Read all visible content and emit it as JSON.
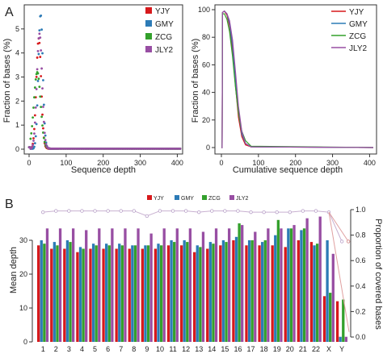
{
  "panels": {
    "a_label": "A",
    "b_label": "B"
  },
  "chart_data": [
    {
      "type": "scatter",
      "xlabel": "Sequence depth",
      "ylabel": "Fraction of bases (%)",
      "xlim": [
        0,
        410
      ],
      "ylim": [
        0,
        5.8
      ],
      "xticks": [
        0,
        100,
        200,
        300,
        400
      ],
      "yticks": [
        0,
        1,
        2,
        3,
        4,
        5
      ],
      "legend_position": "top-right",
      "series": [
        {
          "name": "YJY",
          "color": "#d7191c",
          "peak_x": 26,
          "peak_y": 4.6,
          "sigma": 6.5
        },
        {
          "name": "GMY",
          "color": "#2c7bb6",
          "peak_x": 31,
          "peak_y": 5.6,
          "sigma": 6.0
        },
        {
          "name": "ZCG",
          "color": "#33a02c",
          "peak_x": 22,
          "peak_y": 3.2,
          "sigma": 9.0
        },
        {
          "name": "JLY2",
          "color": "#984ea3",
          "peak_x": 28,
          "peak_y": 4.8,
          "sigma": 7.0
        }
      ]
    },
    {
      "type": "line",
      "xlabel": "Cumulative sequence depth",
      "ylabel": "Fraction of bases (%)",
      "xlim": [
        0,
        410
      ],
      "ylim": [
        0,
        100
      ],
      "xticks": [
        0,
        100,
        200,
        300,
        400
      ],
      "yticks": [
        0,
        20,
        40,
        60,
        80,
        100
      ],
      "legend_position": "top-right",
      "series": [
        {
          "name": "YJY",
          "color": "#d7191c",
          "points": [
            [
              0,
              0
            ],
            [
              2,
              0
            ],
            [
              3,
              98
            ],
            [
              8,
              99
            ],
            [
              15,
              96
            ],
            [
              22,
              88
            ],
            [
              30,
              70
            ],
            [
              38,
              45
            ],
            [
              46,
              22
            ],
            [
              55,
              8
            ],
            [
              65,
              2
            ],
            [
              80,
              0.5
            ],
            [
              410,
              0
            ]
          ]
        },
        {
          "name": "GMY",
          "color": "#2c7bb6",
          "points": [
            [
              0,
              0
            ],
            [
              2,
              0
            ],
            [
              3,
              98
            ],
            [
              8,
              99
            ],
            [
              15,
              97
            ],
            [
              22,
              90
            ],
            [
              30,
              74
            ],
            [
              38,
              50
            ],
            [
              46,
              26
            ],
            [
              55,
              10
            ],
            [
              65,
              3
            ],
            [
              80,
              0.5
            ],
            [
              410,
              0
            ]
          ]
        },
        {
          "name": "ZCG",
          "color": "#33a02c",
          "points": [
            [
              0,
              0
            ],
            [
              2,
              0
            ],
            [
              3,
              97
            ],
            [
              8,
              97
            ],
            [
              15,
              93
            ],
            [
              22,
              84
            ],
            [
              30,
              66
            ],
            [
              38,
              44
            ],
            [
              46,
              25
            ],
            [
              55,
              12
            ],
            [
              65,
              5
            ],
            [
              80,
              1
            ],
            [
              410,
              0
            ]
          ]
        },
        {
          "name": "JLY2",
          "color": "#984ea3",
          "points": [
            [
              0,
              0
            ],
            [
              2,
              0
            ],
            [
              3,
              98
            ],
            [
              8,
              99
            ],
            [
              15,
              97
            ],
            [
              22,
              92
            ],
            [
              30,
              78
            ],
            [
              38,
              55
            ],
            [
              46,
              30
            ],
            [
              55,
              12
            ],
            [
              65,
              3
            ],
            [
              80,
              0.5
            ],
            [
              410,
              0
            ]
          ]
        }
      ]
    },
    {
      "type": "bar",
      "ylabel": "Mean depth",
      "y2label": "Proportion of covered bases",
      "ylim": [
        0,
        40
      ],
      "y2lim": [
        0,
        1.0
      ],
      "yticks": [
        0,
        10,
        20,
        30
      ],
      "y2ticks": [
        0.0,
        0.2,
        0.4,
        0.6,
        0.8,
        1.0
      ],
      "legend_position": "top",
      "categories": [
        "1",
        "2",
        "3",
        "4",
        "5",
        "6",
        "7",
        "8",
        "9",
        "10",
        "11",
        "12",
        "13",
        "14",
        "15",
        "16",
        "17",
        "18",
        "19",
        "20",
        "21",
        "22",
        "X",
        "Y"
      ],
      "series": [
        {
          "name": "YJY",
          "color": "#d7191c",
          "values": [
            28.5,
            27.5,
            27.5,
            26.5,
            27.5,
            27.5,
            27.5,
            27.5,
            27.5,
            27.5,
            28.5,
            28.5,
            26.5,
            27.5,
            28.5,
            30,
            28.5,
            28.5,
            28.5,
            28,
            30,
            29.5,
            13.5,
            12
          ]
        },
        {
          "name": "GMY",
          "color": "#2c7bb6",
          "values": [
            30,
            29.5,
            30,
            28,
            29,
            29,
            29,
            28.5,
            28.5,
            29,
            30,
            30,
            28.5,
            29.5,
            30,
            31,
            30,
            29.5,
            31.5,
            33.5,
            33,
            28.5,
            30,
            1.5
          ]
        },
        {
          "name": "ZCG",
          "color": "#33a02c",
          "values": [
            29,
            28.5,
            29.5,
            27.5,
            28.5,
            28.5,
            28.5,
            28.5,
            28.5,
            28.5,
            29.5,
            29.5,
            28,
            29,
            29.5,
            35,
            30,
            30,
            36,
            33.5,
            33.5,
            29,
            14.5,
            12.5
          ]
        },
        {
          "name": "JLY2",
          "color": "#984ea3",
          "values": [
            33.5,
            33.5,
            33.5,
            33,
            33.5,
            33.5,
            33.5,
            33.5,
            32,
            33.5,
            33.5,
            33.5,
            32.5,
            33.5,
            33.5,
            34.5,
            32.5,
            33.5,
            33.5,
            34.5,
            36.5,
            37,
            26,
            1.5
          ]
        }
      ],
      "coverage": {
        "values": [
          0.98,
          0.99,
          0.99,
          0.99,
          0.99,
          0.99,
          0.99,
          0.99,
          0.95,
          0.99,
          0.99,
          0.99,
          0.98,
          0.99,
          0.99,
          0.99,
          0.98,
          0.98,
          0.98,
          0.98,
          0.99,
          0.99,
          0.98,
          0.75
        ],
        "y_low": [
          0.04
        ],
        "color": "#e0a0a0"
      }
    }
  ]
}
